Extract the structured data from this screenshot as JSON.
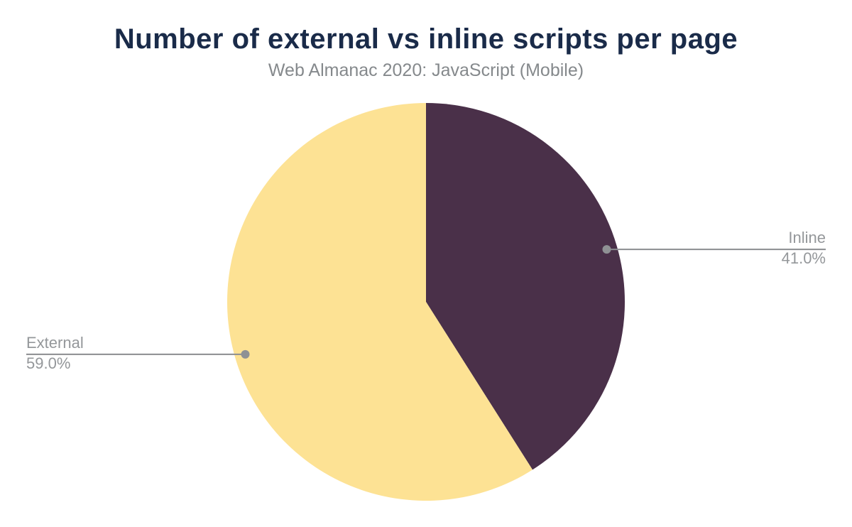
{
  "chart_data": {
    "type": "pie",
    "title": "Number of external vs inline scripts per page",
    "subtitle": "Web Almanac 2020: JavaScript (Mobile)",
    "unit": "%",
    "start_angle": "12 o'clock",
    "direction": "clockwise",
    "labels_style": "outside callouts with horizontal leader lines and dots",
    "slices": [
      {
        "label": "Inline",
        "value": 41.0,
        "display": "41.0%",
        "color": "#4a3049"
      },
      {
        "label": "External",
        "value": 59.0,
        "display": "59.0%",
        "color": "#fde294"
      }
    ],
    "colors": {
      "background": "#ffffff",
      "title": "#1a2b49",
      "subtitle": "#85898c",
      "callout_text": "#94979a",
      "leader_line": "#8b8d90",
      "leader_dot": "#8f9194"
    }
  }
}
